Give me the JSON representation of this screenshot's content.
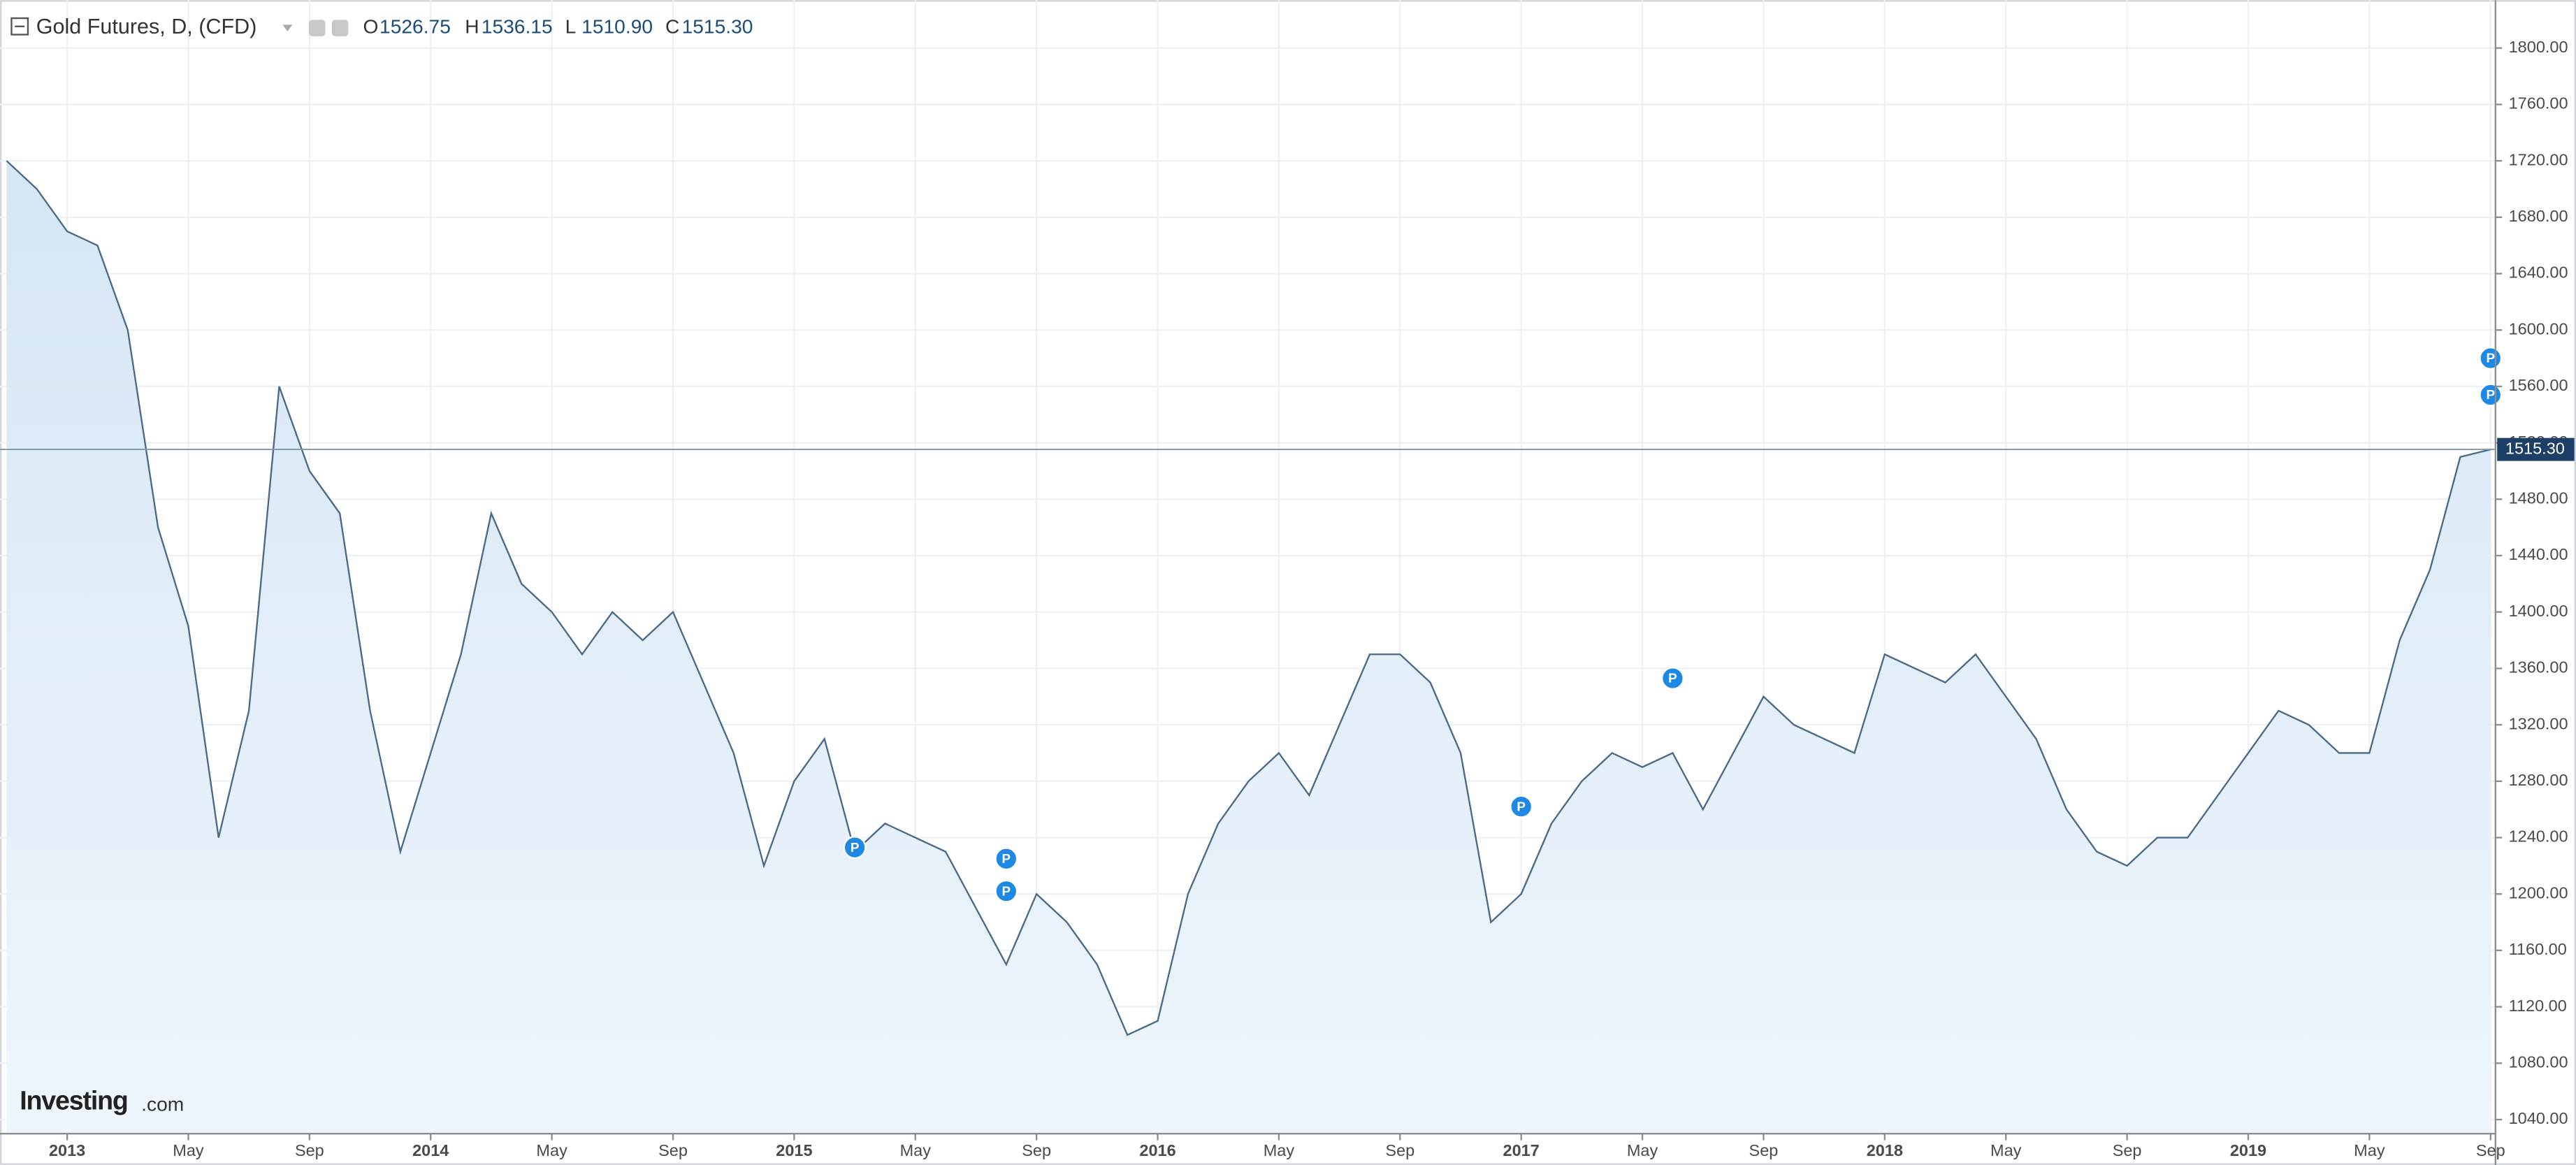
{
  "header": {
    "title": "Gold Futures, D, (CFD)",
    "ohlc": [
      {
        "key": "O",
        "value": "1526.75"
      },
      {
        "key": "H",
        "value": "1536.15"
      },
      {
        "key": "L",
        "value": "1510.90"
      },
      {
        "key": "C",
        "value": "1515.30"
      }
    ]
  },
  "logo": {
    "name": "Investing",
    "suffix": ".com"
  },
  "chart_data": {
    "type": "area",
    "grid": true,
    "x": [
      "2012-11",
      "2012-12",
      "2013-01",
      "2013-02",
      "2013-03",
      "2013-04",
      "2013-05",
      "2013-06",
      "2013-07",
      "2013-08",
      "2013-09",
      "2013-10",
      "2013-11",
      "2013-12",
      "2014-01",
      "2014-02",
      "2014-03",
      "2014-04",
      "2014-05",
      "2014-06",
      "2014-07",
      "2014-08",
      "2014-09",
      "2014-10",
      "2014-11",
      "2014-12",
      "2015-01",
      "2015-02",
      "2015-03",
      "2015-04",
      "2015-05",
      "2015-06",
      "2015-07",
      "2015-08",
      "2015-09",
      "2015-10",
      "2015-11",
      "2015-12",
      "2016-01",
      "2016-02",
      "2016-03",
      "2016-04",
      "2016-05",
      "2016-06",
      "2016-07",
      "2016-08",
      "2016-09",
      "2016-10",
      "2016-11",
      "2016-12",
      "2017-01",
      "2017-02",
      "2017-03",
      "2017-04",
      "2017-05",
      "2017-06",
      "2017-07",
      "2017-08",
      "2017-09",
      "2017-10",
      "2017-11",
      "2017-12",
      "2018-01",
      "2018-02",
      "2018-03",
      "2018-04",
      "2018-05",
      "2018-06",
      "2018-07",
      "2018-08",
      "2018-09",
      "2018-10",
      "2018-11",
      "2018-12",
      "2019-01",
      "2019-02",
      "2019-03",
      "2019-04",
      "2019-05",
      "2019-06",
      "2019-07",
      "2019-08",
      "2019-09"
    ],
    "series": [
      {
        "name": "Gold Futures",
        "color": "#4a6a88",
        "values": [
          1720,
          1700,
          1670,
          1660,
          1600,
          1460,
          1390,
          1240,
          1330,
          1560,
          1500,
          1470,
          1330,
          1230,
          1300,
          1370,
          1470,
          1420,
          1400,
          1370,
          1400,
          1380,
          1400,
          1350,
          1300,
          1220,
          1280,
          1310,
          1230,
          1250,
          1240,
          1230,
          1190,
          1150,
          1200,
          1180,
          1150,
          1100,
          1110,
          1200,
          1250,
          1280,
          1300,
          1270,
          1320,
          1370,
          1370,
          1350,
          1300,
          1180,
          1200,
          1250,
          1280,
          1300,
          1290,
          1300,
          1260,
          1300,
          1340,
          1320,
          1310,
          1300,
          1370,
          1360,
          1350,
          1370,
          1340,
          1310,
          1260,
          1230,
          1220,
          1240,
          1240,
          1270,
          1300,
          1330,
          1320,
          1300,
          1300,
          1380,
          1430,
          1510,
          1515.3
        ]
      }
    ],
    "xlim": [
      "2012-11",
      "2019-09"
    ],
    "xticks": [
      {
        "value": "2013-01",
        "label": "2013"
      },
      {
        "value": "2013-05",
        "label": "May"
      },
      {
        "value": "2013-09",
        "label": "Sep"
      },
      {
        "value": "2014-01",
        "label": "2014"
      },
      {
        "value": "2014-05",
        "label": "May"
      },
      {
        "value": "2014-09",
        "label": "Sep"
      },
      {
        "value": "2015-01",
        "label": "2015"
      },
      {
        "value": "2015-05",
        "label": "May"
      },
      {
        "value": "2015-09",
        "label": "Sep"
      },
      {
        "value": "2016-01",
        "label": "2016"
      },
      {
        "value": "2016-05",
        "label": "May"
      },
      {
        "value": "2016-09",
        "label": "Sep"
      },
      {
        "value": "2017-01",
        "label": "2017"
      },
      {
        "value": "2017-05",
        "label": "May"
      },
      {
        "value": "2017-09",
        "label": "Sep"
      },
      {
        "value": "2018-01",
        "label": "2018"
      },
      {
        "value": "2018-05",
        "label": "May"
      },
      {
        "value": "2018-09",
        "label": "Sep"
      },
      {
        "value": "2019-01",
        "label": "2019"
      },
      {
        "value": "2019-05",
        "label": "May"
      },
      {
        "value": "2019-09",
        "label": "Sep"
      }
    ],
    "ylim": [
      1030,
      1834
    ],
    "yticks": [
      {
        "value": 1040,
        "label": "1040.00"
      },
      {
        "value": 1080,
        "label": "1080.00"
      },
      {
        "value": 1120,
        "label": "1120.00"
      },
      {
        "value": 1160,
        "label": "1160.00"
      },
      {
        "value": 1200,
        "label": "1200.00"
      },
      {
        "value": 1240,
        "label": "1240.00"
      },
      {
        "value": 1280,
        "label": "1280.00"
      },
      {
        "value": 1320,
        "label": "1320.00"
      },
      {
        "value": 1360,
        "label": "1360.00"
      },
      {
        "value": 1400,
        "label": "1400.00"
      },
      {
        "value": 1440,
        "label": "1440.00"
      },
      {
        "value": 1480,
        "label": "1480.00"
      },
      {
        "value": 1520,
        "label": "1520.00"
      },
      {
        "value": 1560,
        "label": "1560.00"
      },
      {
        "value": 1600,
        "label": "1600.00"
      },
      {
        "value": 1640,
        "label": "1640.00"
      },
      {
        "value": 1680,
        "label": "1680.00"
      },
      {
        "value": 1720,
        "label": "1720.00"
      },
      {
        "value": 1760,
        "label": "1760.00"
      },
      {
        "value": 1800,
        "label": "1800.00"
      }
    ],
    "markers": [
      {
        "x": "2015-03",
        "value": 1233,
        "label": "P"
      },
      {
        "x": "2015-08",
        "value": 1225,
        "label": "P"
      },
      {
        "x": "2015-08",
        "value": 1202,
        "label": "P"
      },
      {
        "x": "2017-01",
        "value": 1262,
        "label": "P"
      },
      {
        "x": "2017-06",
        "value": 1353,
        "label": "P"
      },
      {
        "x": "2019-09",
        "value": 1580,
        "label": "P"
      },
      {
        "x": "2019-09",
        "value": 1554,
        "label": "P"
      }
    ]
  }
}
